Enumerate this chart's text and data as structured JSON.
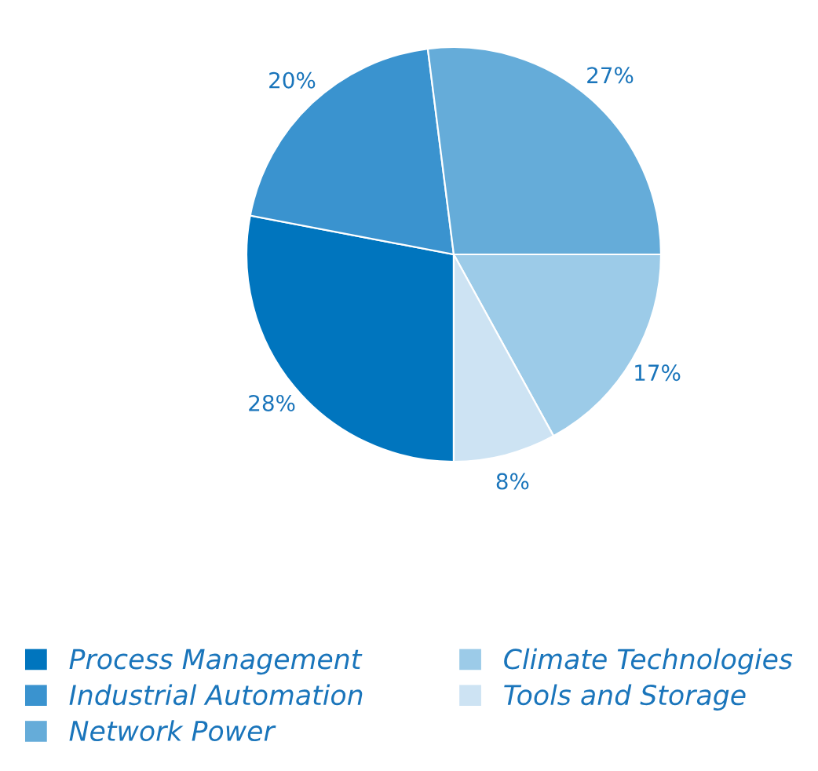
{
  "chart_data": {
    "type": "pie",
    "categories": [
      "Process Management",
      "Industrial Automation",
      "Network Power",
      "Climate Technologies",
      "Tools and Storage"
    ],
    "values": [
      28,
      20,
      27,
      17,
      8
    ],
    "value_labels": [
      "28%",
      "20%",
      "27%",
      "17%",
      "8%"
    ],
    "colors": [
      "#0075be",
      "#3a93cf",
      "#65acd9",
      "#9ccbe8",
      "#cde3f3"
    ],
    "legend": "bottom"
  }
}
